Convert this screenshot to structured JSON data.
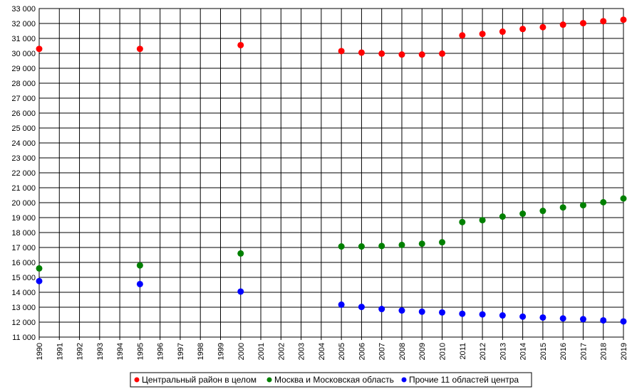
{
  "chart_data": {
    "type": "scatter",
    "title": "",
    "xlabel": "",
    "ylabel": "",
    "x_ticks": [
      "1990",
      "1991",
      "1992",
      "1993",
      "1994",
      "1995",
      "1996",
      "1997",
      "1998",
      "1999",
      "2000",
      "2001",
      "2002",
      "2003",
      "2004",
      "2005",
      "2006",
      "2007",
      "2008",
      "2009",
      "2010",
      "2011",
      "2012",
      "2013",
      "2014",
      "2015",
      "2016",
      "2017",
      "2018",
      "2019"
    ],
    "xlim": [
      1990,
      2019
    ],
    "ylim": [
      11000,
      33000
    ],
    "y_step": 1000,
    "y_tick_labels": [
      "11 000",
      "12 000",
      "13 000",
      "14 000",
      "15 000",
      "16 000",
      "17 000",
      "18 000",
      "19 000",
      "20 000",
      "21 000",
      "22 000",
      "23 000",
      "24 000",
      "25 000",
      "26 000",
      "27 000",
      "28 000",
      "29 000",
      "30 000",
      "31 000",
      "32 000",
      "33 000"
    ],
    "grid": true,
    "legend_position": "bottom",
    "series": [
      {
        "name": "Центральный район в целом",
        "color": "#ff0000",
        "x": [
          1990,
          1995,
          2000,
          2005,
          2006,
          2007,
          2008,
          2009,
          2010,
          2011,
          2012,
          2013,
          2014,
          2015,
          2016,
          2017,
          2018,
          2019
        ],
        "y": [
          30300,
          30300,
          30550,
          30150,
          30050,
          29980,
          29920,
          29920,
          29980,
          31200,
          31300,
          31450,
          31630,
          31750,
          31920,
          32020,
          32150,
          32250
        ]
      },
      {
        "name": "Москва и Московская область",
        "color": "#008000",
        "x": [
          1990,
          1995,
          2000,
          2005,
          2006,
          2007,
          2008,
          2009,
          2010,
          2011,
          2012,
          2013,
          2014,
          2015,
          2016,
          2017,
          2018,
          2019
        ],
        "y": [
          15600,
          15800,
          16600,
          17070,
          17070,
          17100,
          17170,
          17250,
          17350,
          18700,
          18830,
          19070,
          19260,
          19450,
          19680,
          19830,
          20030,
          20280
        ]
      },
      {
        "name": "Прочие 11 областей центра",
        "color": "#0000ff",
        "x": [
          1990,
          1995,
          2000,
          2005,
          2006,
          2007,
          2008,
          2009,
          2010,
          2011,
          2012,
          2013,
          2014,
          2015,
          2016,
          2017,
          2018,
          2019
        ],
        "y": [
          14750,
          14550,
          14050,
          13170,
          13020,
          12880,
          12780,
          12700,
          12650,
          12560,
          12520,
          12450,
          12370,
          12310,
          12250,
          12200,
          12120,
          12050
        ]
      }
    ]
  }
}
